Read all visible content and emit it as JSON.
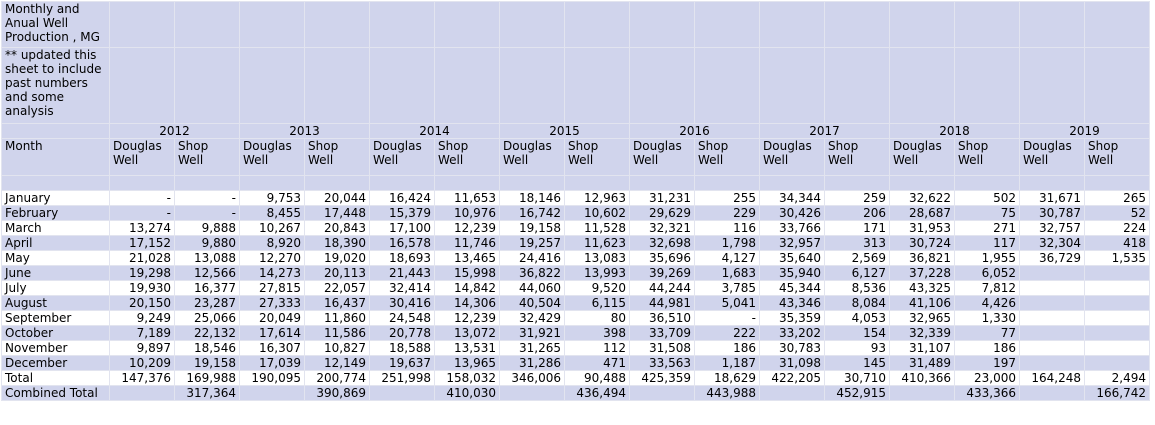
{
  "title": "Monthly and Anual Well Production , MG",
  "note": "** updated this sheet to include past numbers and some analysis",
  "years": [
    "2012",
    "2013",
    "2014",
    "2015",
    "2016",
    "2017",
    "2018",
    "2019"
  ],
  "month_header": "Month",
  "column_headers": [
    "Douglas Well",
    "Shop Well",
    "Douglas Well",
    "Shop Well",
    "Douglas Well",
    "Shop Well",
    "Douglas Well",
    "Shop Well",
    "Douglas Well",
    "Shop Well",
    "Douglas Well",
    "Shop Well",
    "Douglas Well",
    "Shop Well",
    "Douglas Well",
    "Shop Well"
  ],
  "rows": [
    {
      "label": "January",
      "cells": [
        "-",
        "-",
        "9,753",
        "20,044",
        "16,424",
        "11,653",
        "18,146",
        "12,963",
        "31,231",
        "255",
        "34,344",
        "259",
        "32,622",
        "502",
        "31,671",
        "265"
      ]
    },
    {
      "label": "February",
      "cells": [
        "-",
        "-",
        "8,455",
        "17,448",
        "15,379",
        "10,976",
        "16,742",
        "10,602",
        "29,629",
        "229",
        "30,426",
        "206",
        "28,687",
        "75",
        "30,787",
        "52"
      ]
    },
    {
      "label": "March",
      "cells": [
        "13,274",
        "9,888",
        "10,267",
        "20,843",
        "17,100",
        "12,239",
        "19,158",
        "11,528",
        "32,321",
        "116",
        "33,766",
        "171",
        "31,953",
        "271",
        "32,757",
        "224"
      ]
    },
    {
      "label": "April",
      "cells": [
        "17,152",
        "9,880",
        "8,920",
        "18,390",
        "16,578",
        "11,746",
        "19,257",
        "11,623",
        "32,698",
        "1,798",
        "32,957",
        "313",
        "30,724",
        "117",
        "32,304",
        "418"
      ]
    },
    {
      "label": "May",
      "cells": [
        "21,028",
        "13,088",
        "12,270",
        "19,020",
        "18,693",
        "13,465",
        "24,416",
        "13,083",
        "35,696",
        "4,127",
        "35,640",
        "2,569",
        "36,821",
        "1,955",
        "36,729",
        "1,535"
      ]
    },
    {
      "label": "June",
      "cells": [
        "19,298",
        "12,566",
        "14,273",
        "20,113",
        "21,443",
        "15,998",
        "36,822",
        "13,993",
        "39,269",
        "1,683",
        "35,940",
        "6,127",
        "37,228",
        "6,052",
        null,
        null
      ]
    },
    {
      "label": "July",
      "cells": [
        "19,930",
        "16,377",
        "27,815",
        "22,057",
        "32,414",
        "14,842",
        "44,060",
        "9,520",
        "44,244",
        "3,785",
        "45,344",
        "8,536",
        "43,325",
        "7,812",
        null,
        null
      ]
    },
    {
      "label": "August",
      "cells": [
        "20,150",
        "23,287",
        "27,333",
        "16,437",
        "30,416",
        "14,306",
        "40,504",
        "6,115",
        "44,981",
        "5,041",
        "43,346",
        "8,084",
        "41,106",
        "4,426",
        null,
        null
      ]
    },
    {
      "label": "September",
      "cells": [
        "9,249",
        "25,066",
        "20,049",
        "11,860",
        "24,548",
        "12,239",
        "32,429",
        "80",
        "36,510",
        "-",
        "35,359",
        "4,053",
        "32,965",
        "1,330",
        null,
        null
      ]
    },
    {
      "label": "October",
      "cells": [
        "7,189",
        "22,132",
        "17,614",
        "11,586",
        "20,778",
        "13,072",
        "31,921",
        "398",
        "33,709",
        "222",
        "33,202",
        "154",
        "32,339",
        "77",
        null,
        null
      ]
    },
    {
      "label": "November",
      "cells": [
        "9,897",
        "18,546",
        "16,307",
        "10,827",
        "18,588",
        "13,531",
        "31,265",
        "112",
        "31,508",
        "186",
        "30,783",
        "93",
        "31,107",
        "186",
        null,
        null
      ]
    },
    {
      "label": "December",
      "cells": [
        "10,209",
        "19,158",
        "17,039",
        "12,149",
        "19,637",
        "13,965",
        "31,286",
        "471",
        "33,563",
        "1,187",
        "31,098",
        "145",
        "31,489",
        "197",
        null,
        null
      ]
    },
    {
      "label": "Total",
      "cells": [
        "147,376",
        "169,988",
        "190,095",
        "200,774",
        "251,998",
        "158,032",
        "346,006",
        "90,488",
        "425,359",
        "18,629",
        "422,205",
        "30,710",
        "410,366",
        "23,000",
        "164,248",
        "2,494"
      ]
    }
  ],
  "combined": {
    "label": "Combined Total",
    "values": [
      "317,364",
      "390,869",
      "410,030",
      "436,494",
      "443,988",
      "452,915",
      "433,366",
      "166,742"
    ]
  }
}
